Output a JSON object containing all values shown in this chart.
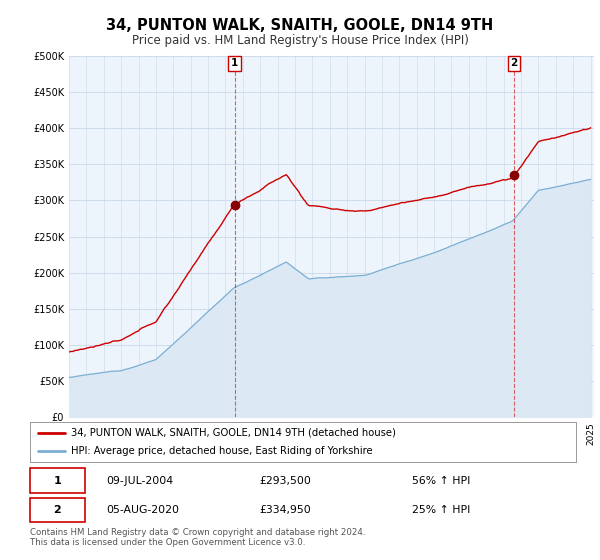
{
  "title": "34, PUNTON WALK, SNAITH, GOOLE, DN14 9TH",
  "subtitle": "Price paid vs. HM Land Registry's House Price Index (HPI)",
  "ylim": [
    0,
    500000
  ],
  "yticks": [
    0,
    50000,
    100000,
    150000,
    200000,
    250000,
    300000,
    350000,
    400000,
    450000,
    500000
  ],
  "red_color": "#cc0000",
  "blue_color": "#7bafd4",
  "blue_fill": "#dce9f5",
  "sale1_date": 2004.53,
  "sale1_price": 293500,
  "sale2_date": 2020.6,
  "sale2_price": 334950,
  "legend1": "34, PUNTON WALK, SNAITH, GOOLE, DN14 9TH (detached house)",
  "legend2": "HPI: Average price, detached house, East Riding of Yorkshire",
  "table_row1": [
    "1",
    "09-JUL-2004",
    "£293,500",
    "56% ↑ HPI"
  ],
  "table_row2": [
    "2",
    "05-AUG-2020",
    "£334,950",
    "25% ↑ HPI"
  ],
  "footer": "Contains HM Land Registry data © Crown copyright and database right 2024.\nThis data is licensed under the Open Government Licence v3.0.",
  "background_color": "#ffffff",
  "chart_bg": "#eef4fb",
  "grid_color": "#c8d8e8"
}
